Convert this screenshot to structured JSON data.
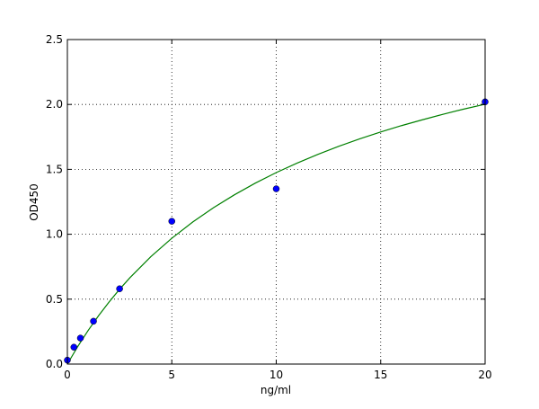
{
  "chart_data": {
    "type": "scatter",
    "title": "",
    "xlabel": "ng/ml",
    "ylabel": "OD450",
    "xlim": [
      0,
      20
    ],
    "ylim": [
      0,
      2.5
    ],
    "xticks": [
      0,
      5,
      10,
      15,
      20
    ],
    "xtick_labels": [
      "0",
      "5",
      "10",
      "15",
      "20"
    ],
    "yticks": [
      0,
      0.5,
      1.0,
      1.5,
      2.0,
      2.5
    ],
    "ytick_labels": [
      "0.0",
      "0.5",
      "1.0",
      "1.5",
      "2.0",
      "2.5"
    ],
    "grid": true,
    "points": {
      "x": [
        0,
        0.3125,
        0.625,
        1.25,
        2.5,
        5,
        10,
        20
      ],
      "y": [
        0.03,
        0.13,
        0.2,
        0.33,
        0.58,
        1.1,
        1.35,
        2.02
      ],
      "color": "#0000ff"
    },
    "fit_curve": {
      "x": [
        0,
        0.5,
        1,
        1.5,
        2,
        2.5,
        3,
        4,
        5,
        6,
        7,
        8,
        9,
        10,
        11,
        12,
        13,
        14,
        15,
        16,
        17,
        18,
        19,
        20
      ],
      "y": [
        0,
        0.136,
        0.26,
        0.374,
        0.479,
        0.576,
        0.666,
        0.828,
        0.969,
        1.094,
        1.205,
        1.304,
        1.394,
        1.475,
        1.548,
        1.616,
        1.678,
        1.735,
        1.788,
        1.837,
        1.882,
        1.925,
        1.965,
        2.002
      ],
      "color": "#008000"
    }
  }
}
